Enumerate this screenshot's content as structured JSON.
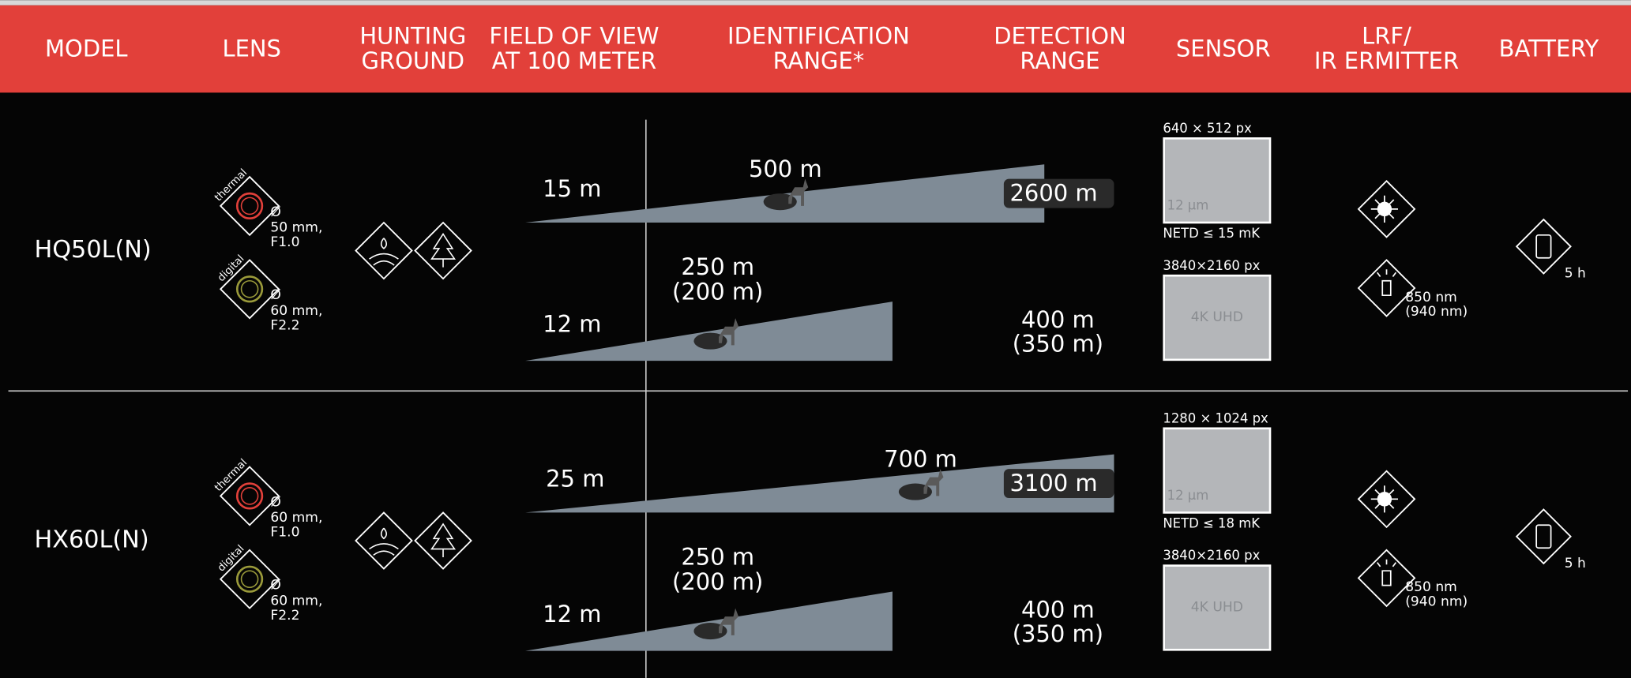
{
  "header": {
    "columns": [
      [
        "MODEL"
      ],
      [
        "LENS"
      ],
      [
        "HUNTING",
        "GROUND"
      ],
      [
        "FIELD OF VIEW",
        "AT 100 METER"
      ],
      [
        "IDENTIFICATION",
        "RANGE*"
      ],
      [
        "DETECTION",
        "RANGE"
      ],
      [
        "SENSOR"
      ],
      [
        "LRF/",
        "IR ERMITTER"
      ],
      [
        "BATTERY"
      ]
    ]
  },
  "rows": [
    {
      "model": "HQ50L(N)",
      "lenses": [
        {
          "tag": "thermal",
          "symbol": "Ø",
          "spec": [
            "50 mm,",
            "F1.0"
          ]
        },
        {
          "tag": "digital",
          "symbol": "Ø",
          "spec": [
            "60 mm,",
            "F2.2"
          ]
        }
      ],
      "field_of_view": [
        "15 m",
        "12 m"
      ],
      "identification": [
        [
          "500 m"
        ],
        [
          "250 m",
          "(200 m)"
        ]
      ],
      "detection": [
        [
          "2600 m"
        ],
        [
          "400 m",
          "(350 m)"
        ]
      ],
      "sensor": {
        "thermal": {
          "resolution": "640 × 512 px",
          "pitch": "12 µm",
          "netd": "NETD ≤ 15 mK"
        },
        "digital": {
          "resolution": "3840×2160 px",
          "label": "4K UHD"
        }
      },
      "ir": [
        "850 nm",
        "(940 nm)"
      ],
      "battery": "5 h"
    },
    {
      "model": "HX60L(N)",
      "lenses": [
        {
          "tag": "thermal",
          "symbol": "Ø",
          "spec": [
            "60 mm,",
            "F1.0"
          ]
        },
        {
          "tag": "digital",
          "symbol": "Ø",
          "spec": [
            "60 mm,",
            "F2.2"
          ]
        }
      ],
      "field_of_view": [
        "25 m",
        "12 m"
      ],
      "identification": [
        [
          "700 m"
        ],
        [
          "250 m",
          "(200 m)"
        ]
      ],
      "detection": [
        [
          "3100 m"
        ],
        [
          "400 m",
          "(350 m)"
        ]
      ],
      "sensor": {
        "thermal": {
          "resolution": "1280 × 1024 px",
          "pitch": "12 µm",
          "netd": "NETD ≤ 18 mK"
        },
        "digital": {
          "resolution": "3840×2160 px",
          "label": "4K UHD"
        }
      },
      "ir": [
        "850 nm",
        "(940 nm)"
      ],
      "battery": "5 h"
    }
  ]
}
